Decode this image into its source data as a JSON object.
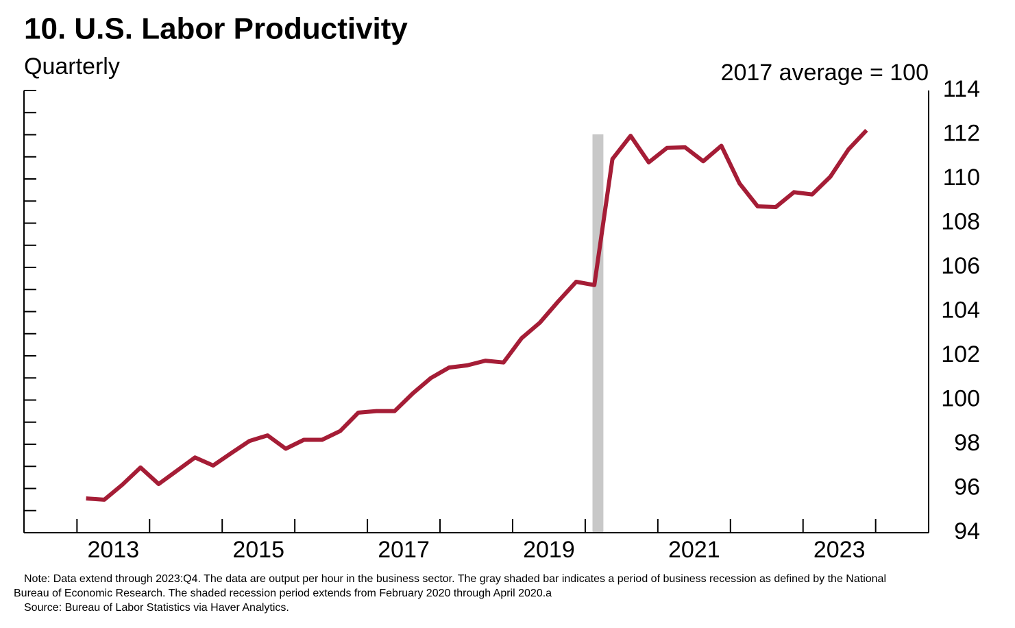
{
  "chart_data": {
    "type": "line",
    "title": "10. U.S. Labor Productivity",
    "subtitle": "Quarterly",
    "y_label": "2017 average = 100",
    "notes": [
      "Note: Data extend through 2023:Q4. The data are output per hour in the business sector. The gray shaded bar indicates a period of business recession as defined by the National",
      "Bureau of Economic Research. The shaded recession period extends from February 2020 through April 2020.a",
      "Source: Bureau of Labor Statistics via Haver Analytics."
    ],
    "x": [
      "2013:Q1",
      "2013:Q2",
      "2013:Q3",
      "2013:Q4",
      "2014:Q1",
      "2014:Q2",
      "2014:Q3",
      "2014:Q4",
      "2015:Q1",
      "2015:Q2",
      "2015:Q3",
      "2015:Q4",
      "2016:Q1",
      "2016:Q2",
      "2016:Q3",
      "2016:Q4",
      "2017:Q1",
      "2017:Q2",
      "2017:Q3",
      "2017:Q4",
      "2018:Q1",
      "2018:Q2",
      "2018:Q3",
      "2018:Q4",
      "2019:Q1",
      "2019:Q2",
      "2019:Q3",
      "2019:Q4",
      "2020:Q1",
      "2020:Q2",
      "2020:Q3",
      "2020:Q4",
      "2021:Q1",
      "2021:Q2",
      "2021:Q3",
      "2021:Q4",
      "2022:Q1",
      "2022:Q2",
      "2022:Q3",
      "2022:Q4",
      "2023:Q1",
      "2023:Q2",
      "2023:Q3",
      "2023:Q4"
    ],
    "series": [
      {
        "color": "#a51d36",
        "values": [
          95.55,
          95.49,
          96.17,
          96.95,
          96.2,
          96.8,
          97.4,
          97.04,
          97.6,
          98.15,
          98.4,
          97.8,
          98.2,
          98.2,
          98.6,
          99.43,
          99.5,
          99.5,
          100.3,
          101.0,
          101.47,
          101.57,
          101.78,
          101.7,
          102.8,
          103.5,
          104.45,
          105.35,
          105.2,
          110.9,
          111.95,
          110.75,
          111.4,
          111.43,
          110.8,
          111.5,
          109.8,
          108.76,
          108.73,
          109.4,
          109.3,
          110.1,
          111.33,
          112.2
        ]
      }
    ],
    "recession": {
      "start": 2020.1,
      "end": 2020.25,
      "color": "#c8c8c8"
    },
    "xlim": [
      2012.27,
      2024.73
    ],
    "xticks": [
      2013,
      2014,
      2015,
      2016,
      2017,
      2018,
      2019,
      2020,
      2021,
      2022,
      2023,
      2024
    ],
    "xlabels": [
      {
        "value": 2013.5,
        "label": "2013"
      },
      {
        "value": 2015.5,
        "label": "2015"
      },
      {
        "value": 2017.5,
        "label": "2017"
      },
      {
        "value": 2019.5,
        "label": "2019"
      },
      {
        "value": 2021.5,
        "label": "2021"
      },
      {
        "value": 2023.5,
        "label": "2023"
      }
    ],
    "ylim": [
      94,
      114
    ],
    "yticks": [
      94,
      96,
      98,
      100,
      102,
      104,
      106,
      108,
      110,
      112,
      114
    ],
    "yminor": [
      95,
      97,
      99,
      101,
      103,
      105,
      107,
      109,
      111,
      113
    ]
  }
}
